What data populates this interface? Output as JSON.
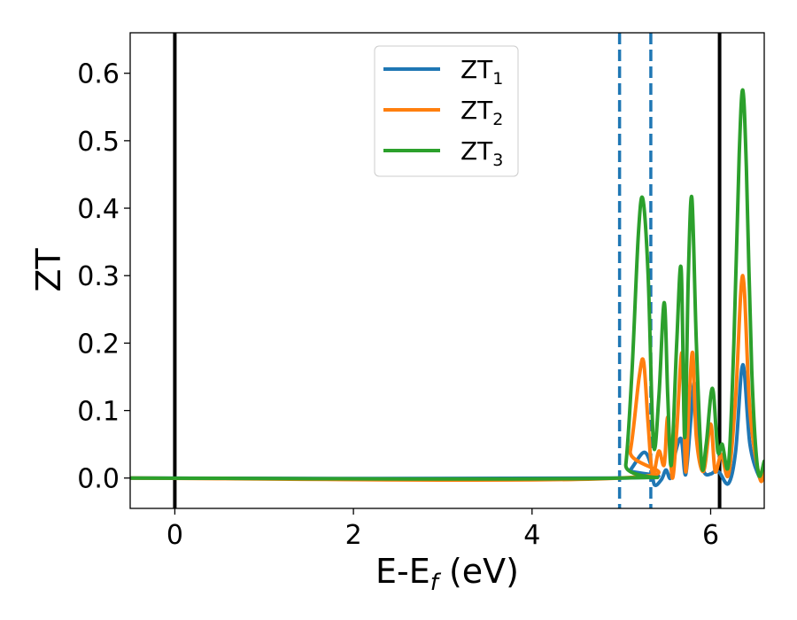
{
  "chart_data": {
    "type": "line",
    "xlabel": "E-E",
    "xlabel_sub": "f",
    "xlabel_unit": " (eV)",
    "ylabel": "ZT",
    "xlim": [
      -0.5,
      6.6
    ],
    "ylim": [
      -0.045,
      0.66
    ],
    "x_ticks": [
      0,
      2,
      4,
      6
    ],
    "x_tick_labels": [
      "0",
      "2",
      "4",
      "6"
    ],
    "y_ticks": [
      0.0,
      0.1,
      0.2,
      0.3,
      0.4,
      0.5,
      0.6
    ],
    "y_tick_labels": [
      "0.0",
      "0.1",
      "0.2",
      "0.3",
      "0.4",
      "0.5",
      "0.6"
    ],
    "grid": false,
    "legend_position": "top-center",
    "colors": {
      "ZT1": "#1f77b4",
      "ZT2": "#ff7f0e",
      "ZT3": "#2ca02c",
      "solid_vline": "#000000",
      "dashed_vline": "#1f77b4"
    },
    "vertical_lines": [
      {
        "x": 0.0,
        "style": "solid",
        "color": "#000000"
      },
      {
        "x": 6.1,
        "style": "solid",
        "color": "#000000"
      },
      {
        "x": 4.98,
        "style": "dashed",
        "color": "#1f77b4"
      },
      {
        "x": 5.33,
        "style": "dashed",
        "color": "#1f77b4"
      }
    ],
    "series": [
      {
        "name": "ZT",
        "name_sub": "1",
        "color": "#1f77b4",
        "points": [
          [
            -0.5,
            0.0
          ],
          [
            4.98,
            0.0
          ],
          [
            5.1,
            0.012
          ],
          [
            5.25,
            0.038
          ],
          [
            5.33,
            0.02
          ],
          [
            5.37,
            -0.01
          ],
          [
            5.45,
            -0.002
          ],
          [
            5.5,
            0.012
          ],
          [
            5.55,
            0.0
          ],
          [
            5.6,
            0.035
          ],
          [
            5.67,
            0.058
          ],
          [
            5.72,
            0.005
          ],
          [
            5.78,
            0.09
          ],
          [
            5.82,
            0.14
          ],
          [
            5.87,
            0.04
          ],
          [
            5.93,
            0.008
          ],
          [
            6.0,
            0.006
          ],
          [
            6.05,
            0.01
          ],
          [
            6.1,
            0.008
          ],
          [
            6.2,
            -0.008
          ],
          [
            6.28,
            0.04
          ],
          [
            6.36,
            0.168
          ],
          [
            6.44,
            0.05
          ],
          [
            6.55,
            0.0
          ],
          [
            6.6,
            0.005
          ]
        ]
      },
      {
        "name": "ZT",
        "name_sub": "2",
        "color": "#ff7f0e",
        "points": [
          [
            -0.5,
            0.0
          ],
          [
            4.98,
            0.0
          ],
          [
            5.1,
            0.04
          ],
          [
            5.2,
            0.15
          ],
          [
            5.25,
            0.172
          ],
          [
            5.3,
            0.08
          ],
          [
            5.35,
            0.005
          ],
          [
            5.42,
            0.04
          ],
          [
            5.48,
            0.02
          ],
          [
            5.52,
            0.09
          ],
          [
            5.57,
            0.0
          ],
          [
            5.62,
            0.07
          ],
          [
            5.68,
            0.185
          ],
          [
            5.72,
            0.01
          ],
          [
            5.76,
            0.12
          ],
          [
            5.8,
            0.185
          ],
          [
            5.84,
            0.06
          ],
          [
            5.92,
            0.01
          ],
          [
            6.0,
            0.08
          ],
          [
            6.05,
            0.01
          ],
          [
            6.12,
            0.035
          ],
          [
            6.2,
            0.005
          ],
          [
            6.28,
            0.12
          ],
          [
            6.36,
            0.3
          ],
          [
            6.44,
            0.1
          ],
          [
            6.55,
            0.0
          ],
          [
            6.6,
            0.01
          ]
        ]
      },
      {
        "name": "ZT",
        "name_sub": "3",
        "color": "#2ca02c",
        "points": [
          [
            -0.5,
            0.0
          ],
          [
            4.98,
            0.0
          ],
          [
            5.05,
            0.02
          ],
          [
            5.12,
            0.16
          ],
          [
            5.19,
            0.36
          ],
          [
            5.24,
            0.414
          ],
          [
            5.3,
            0.3
          ],
          [
            5.36,
            0.05
          ],
          [
            5.42,
            0.12
          ],
          [
            5.48,
            0.26
          ],
          [
            5.52,
            0.12
          ],
          [
            5.56,
            0.02
          ],
          [
            5.62,
            0.2
          ],
          [
            5.67,
            0.31
          ],
          [
            5.71,
            0.06
          ],
          [
            5.75,
            0.3
          ],
          [
            5.79,
            0.415
          ],
          [
            5.84,
            0.2
          ],
          [
            5.9,
            0.02
          ],
          [
            5.95,
            0.05
          ],
          [
            6.02,
            0.133
          ],
          [
            6.08,
            0.04
          ],
          [
            6.13,
            0.05
          ],
          [
            6.2,
            0.02
          ],
          [
            6.26,
            0.2
          ],
          [
            6.32,
            0.48
          ],
          [
            6.36,
            0.575
          ],
          [
            6.4,
            0.46
          ],
          [
            6.46,
            0.16
          ],
          [
            6.53,
            0.01
          ],
          [
            6.6,
            0.025
          ]
        ]
      }
    ]
  }
}
